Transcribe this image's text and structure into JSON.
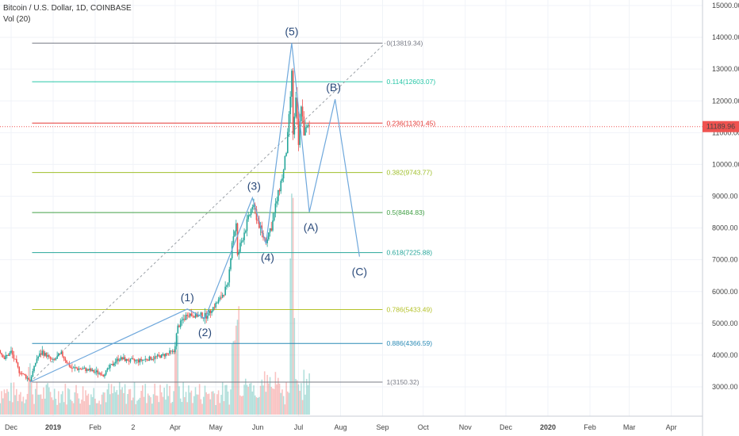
{
  "header": {
    "title": "Bitcoin / U.S. Dollar, 1D, COINBASE",
    "indicator": "Vol (20)"
  },
  "chart_data": {
    "type": "candlestick",
    "symbol": "BTCUSD",
    "ylim": [
      2000,
      15000
    ],
    "y_ticks": [
      3000,
      4000,
      5000,
      6000,
      7000,
      8000,
      9000,
      10000,
      11000,
      12000,
      13000,
      14000,
      15000
    ],
    "y_tick_labels": [
      "3000.00",
      "4000.00",
      "5000.00",
      "6000.00",
      "7000.00",
      "8000.00",
      "9000.00",
      "10000.00",
      "11000.00",
      "12000.00",
      "13000.00",
      "14000.00",
      "15000.00"
    ],
    "x_range": [
      "2018-11-25",
      "2019-05-04"
    ],
    "x_ticks": [
      {
        "label": "Dec",
        "date": "2018-12-01"
      },
      {
        "label": "2019",
        "date": "2019-01-01"
      },
      {
        "label": "Feb",
        "date": "2019-02-01"
      },
      {
        "label": "2",
        "date": "2019-03-01"
      },
      {
        "label": "Apr",
        "date": "2019-04-01"
      },
      {
        "label": "May",
        "date": "2019-05-01"
      },
      {
        "label": "Jun",
        "date": "2019-06-01"
      },
      {
        "label": "Jul",
        "date": "2019-07-01"
      },
      {
        "label": "Aug",
        "date": "2019-08-01"
      },
      {
        "label": "Sep",
        "date": "2019-09-01"
      },
      {
        "label": "Oct",
        "date": "2019-10-01"
      },
      {
        "label": "Nov",
        "date": "2019-11-01"
      },
      {
        "label": "Dec",
        "date": "2019-12-01"
      },
      {
        "label": "2020",
        "date": "2020-01-01"
      },
      {
        "label": "Feb",
        "date": "2020-02-01"
      },
      {
        "label": "Mar",
        "date": "2020-03-01"
      },
      {
        "label": "Apr",
        "date": "2020-04-01"
      }
    ],
    "last_price": {
      "value": 11189.96,
      "label": "11189.96",
      "color": "#ef5350"
    },
    "fib_levels": [
      {
        "ratio": "0",
        "price": 13819.34,
        "label": "0(13819.34)",
        "color": "#787b86"
      },
      {
        "ratio": "0.114",
        "price": 12603.07,
        "label": "0.114(12603.07)",
        "color": "#26c6a6"
      },
      {
        "ratio": "0.236",
        "price": 11301.45,
        "label": "0.236(11301.45)",
        "color": "#e53935"
      },
      {
        "ratio": "0.382",
        "price": 9743.77,
        "label": "0.382(9743.77)",
        "color": "#9fbf2a"
      },
      {
        "ratio": "0.5",
        "price": 8484.83,
        "label": "0.5(8484.83)",
        "color": "#43a047"
      },
      {
        "ratio": "0.618",
        "price": 7225.88,
        "label": "0.618(7225.88)",
        "color": "#26a69a"
      },
      {
        "ratio": "0.786",
        "price": 5433.49,
        "label": "0.786(5433.49)",
        "color": "#b5c22a"
      },
      {
        "ratio": "0.886",
        "price": 4366.59,
        "label": "0.886(4366.59)",
        "color": "#2a8ab5"
      },
      {
        "ratio": "1",
        "price": 3150.32,
        "label": "1(3150.32)",
        "color": "#787b86"
      }
    ],
    "waves": [
      {
        "label": "(1)",
        "date": "2019-04-10",
        "price": 5450
      },
      {
        "label": "(2)",
        "date": "2019-04-23",
        "price": 5150
      },
      {
        "label": "(3)",
        "date": "2019-05-28",
        "price": 8950
      },
      {
        "label": "(4)",
        "date": "2019-06-07",
        "price": 7500
      },
      {
        "label": "(5)",
        "date": "2019-06-26",
        "price": 13819
      },
      {
        "label": "(A)",
        "date": "2019-07-09",
        "price": 8500
      },
      {
        "label": "(B)",
        "date": "2019-07-28",
        "price": 12050
      },
      {
        "label": "(C)",
        "date": "2019-08-15",
        "price": 7100
      }
    ],
    "wave_start": {
      "date": "2018-12-15",
      "price": 3150
    },
    "trendline": {
      "from": {
        "date": "2018-12-15",
        "price": 3150
      },
      "to": {
        "date": "2019-09-03",
        "price": 13819
      }
    },
    "price_path": [
      [
        "2018-11-20",
        4300
      ],
      [
        "2018-11-26",
        3900
      ],
      [
        "2018-12-01",
        4100
      ],
      [
        "2018-12-07",
        3500
      ],
      [
        "2018-12-15",
        3200
      ],
      [
        "2018-12-20",
        3900
      ],
      [
        "2018-12-24",
        4100
      ],
      [
        "2019-01-01",
        3800
      ],
      [
        "2019-01-07",
        4050
      ],
      [
        "2019-01-14",
        3600
      ],
      [
        "2019-01-25",
        3550
      ],
      [
        "2019-02-07",
        3400
      ],
      [
        "2019-02-18",
        3900
      ],
      [
        "2019-03-01",
        3800
      ],
      [
        "2019-03-15",
        3900
      ],
      [
        "2019-03-31",
        4100
      ],
      [
        "2019-04-03",
        4900
      ],
      [
        "2019-04-10",
        5300
      ],
      [
        "2019-04-23",
        5200
      ],
      [
        "2019-05-03",
        5700
      ],
      [
        "2019-05-10",
        6200
      ],
      [
        "2019-05-13",
        7600
      ],
      [
        "2019-05-16",
        8100
      ],
      [
        "2019-05-17",
        7100
      ],
      [
        "2019-05-22",
        7900
      ],
      [
        "2019-05-28",
        8700
      ],
      [
        "2019-05-30",
        8500
      ],
      [
        "2019-06-04",
        7800
      ],
      [
        "2019-06-07",
        7600
      ],
      [
        "2019-06-12",
        8200
      ],
      [
        "2019-06-16",
        9100
      ],
      [
        "2019-06-20",
        9800
      ],
      [
        "2019-06-23",
        10800
      ],
      [
        "2019-06-26",
        12800
      ],
      [
        "2019-06-27",
        11000
      ],
      [
        "2019-06-29",
        11900
      ],
      [
        "2019-07-01",
        10600
      ],
      [
        "2019-07-03",
        11900
      ],
      [
        "2019-07-05",
        11000
      ],
      [
        "2019-07-09",
        11189
      ]
    ],
    "volume_spikes": [
      [
        "2018-12-15",
        1
      ],
      [
        "2019-04-02",
        2
      ],
      [
        "2019-05-14",
        2
      ],
      [
        "2019-05-17",
        3
      ],
      [
        "2019-06-26",
        5
      ],
      [
        "2019-06-27",
        3
      ]
    ]
  }
}
